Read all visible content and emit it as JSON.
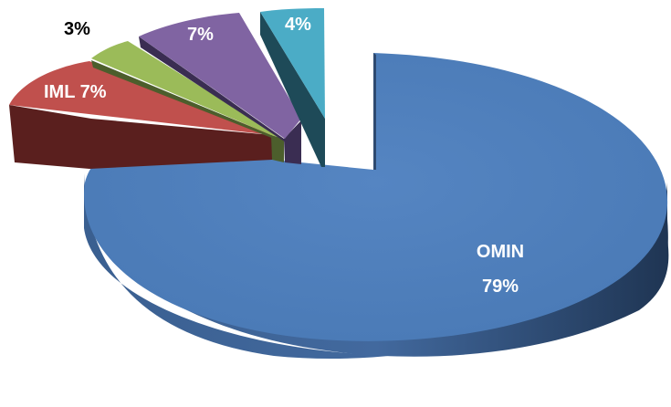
{
  "chart_data": {
    "type": "pie",
    "style": "3d-exploded",
    "slices": [
      {
        "label": "OMIN",
        "value": 79,
        "value_label": "79%",
        "color": "#4F81BD"
      },
      {
        "label": "IML",
        "value": 7,
        "value_label": "7%",
        "display": "IML 7%",
        "color": "#C0504D"
      },
      {
        "label": "",
        "value": 3,
        "value_label": "3%",
        "color": "#9BBB59"
      },
      {
        "label": "",
        "value": 7,
        "value_label": "7%",
        "color": "#8064A2"
      },
      {
        "label": "",
        "value": 4,
        "value_label": "4%",
        "color": "#4BACC6"
      }
    ]
  }
}
